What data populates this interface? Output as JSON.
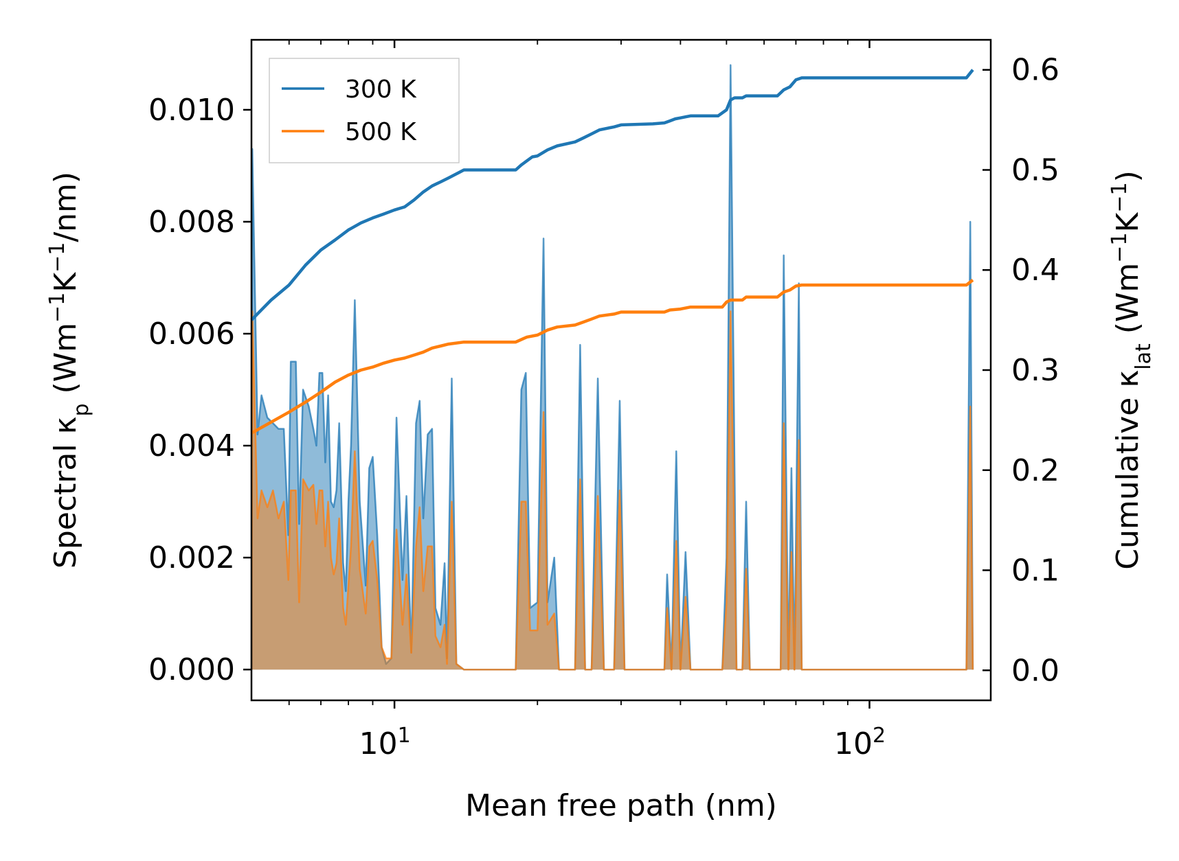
{
  "chart_data": {
    "type": "line",
    "xscale": "log",
    "xlim": [
      5.0,
      180.0
    ],
    "y_left": {
      "lim": [
        -0.00055,
        0.01125
      ],
      "ticks": [
        0.0,
        0.002,
        0.004,
        0.006,
        0.008,
        0.01
      ],
      "tick_labels": [
        "0.000",
        "0.002",
        "0.004",
        "0.006",
        "0.008",
        "0.010"
      ]
    },
    "y_right": {
      "lim": [
        -0.03,
        0.63
      ],
      "ticks": [
        0.0,
        0.1,
        0.2,
        0.3,
        0.4,
        0.5,
        0.6
      ],
      "tick_labels": [
        "0.0",
        "0.1",
        "0.2",
        "0.3",
        "0.4",
        "0.5",
        "0.6"
      ]
    },
    "x_ticks": [
      {
        "value": 10,
        "base": "10",
        "exp": "1"
      },
      {
        "value": 100,
        "base": "10",
        "exp": "2"
      }
    ],
    "xlabel": "Mean free path (nm)",
    "ylabel_left": {
      "pre": "Spectral κ",
      "sub": "p",
      "mid": " (Wm",
      "sup1": "−1",
      "k": "K",
      "sup2": "−1",
      "post": "/nm)"
    },
    "ylabel_right": {
      "pre": "Cumulative κ",
      "sub": "lat",
      "mid": " (Wm",
      "sup1": "−1",
      "k": "K",
      "sup2": "−1",
      "post": ")"
    },
    "legend": {
      "position": "top-left",
      "entries": [
        {
          "label": "300 K",
          "color": "#1f77b4"
        },
        {
          "label": "500 K",
          "color": "#ff7f0e"
        }
      ]
    },
    "series": [
      {
        "name": "300 K",
        "color": "#1f77b4",
        "spectral": [
          [
            5.0,
            0.0
          ],
          [
            5.02,
            0.0093
          ],
          [
            5.15,
            0.0042
          ],
          [
            5.25,
            0.0049
          ],
          [
            5.4,
            0.0045
          ],
          [
            5.55,
            0.0044
          ],
          [
            5.7,
            0.0043
          ],
          [
            5.85,
            0.0043
          ],
          [
            5.98,
            0.0024
          ],
          [
            6.05,
            0.0055
          ],
          [
            6.2,
            0.0055
          ],
          [
            6.3,
            0.0026
          ],
          [
            6.42,
            0.005
          ],
          [
            6.6,
            0.0047
          ],
          [
            6.75,
            0.0043
          ],
          [
            6.85,
            0.004
          ],
          [
            6.95,
            0.0053
          ],
          [
            7.05,
            0.0053
          ],
          [
            7.15,
            0.0037
          ],
          [
            7.25,
            0.0049
          ],
          [
            7.35,
            0.003
          ],
          [
            7.45,
            0.0029
          ],
          [
            7.55,
            0.0032
          ],
          [
            7.65,
            0.0044
          ],
          [
            7.8,
            0.0019
          ],
          [
            7.9,
            0.0014
          ],
          [
            8.0,
            0.003
          ],
          [
            8.1,
            0.004
          ],
          [
            8.25,
            0.0066
          ],
          [
            8.45,
            0.003
          ],
          [
            8.7,
            0.0015
          ],
          [
            8.85,
            0.0036
          ],
          [
            9.0,
            0.0038
          ],
          [
            9.2,
            0.0024
          ],
          [
            9.4,
            0.0004
          ],
          [
            9.6,
            0.0001
          ],
          [
            9.85,
            0.0002
          ],
          [
            10.1,
            0.0045
          ],
          [
            10.4,
            0.0016
          ],
          [
            10.6,
            0.0031
          ],
          [
            10.85,
            0.0003
          ],
          [
            11.1,
            0.0044
          ],
          [
            11.3,
            0.0048
          ],
          [
            11.5,
            0.0027
          ],
          [
            11.75,
            0.0042
          ],
          [
            12.0,
            0.0043
          ],
          [
            12.2,
            0.0011
          ],
          [
            12.5,
            0.0008
          ],
          [
            12.75,
            0.0019
          ],
          [
            12.9,
            0.0002
          ],
          [
            13.2,
            0.0052
          ],
          [
            13.5,
            0.0001
          ],
          [
            14.0,
            0.0
          ],
          [
            18.0,
            0.0
          ],
          [
            18.5,
            0.005
          ],
          [
            18.9,
            0.0053
          ],
          [
            19.3,
            0.0011
          ],
          [
            20.0,
            0.0012
          ],
          [
            20.6,
            0.0077
          ],
          [
            21.0,
            0.0012
          ],
          [
            21.7,
            0.002
          ],
          [
            22.2,
            0.0
          ],
          [
            24.0,
            0.0
          ],
          [
            24.6,
            0.0058
          ],
          [
            25.2,
            0.0
          ],
          [
            26.0,
            0.0
          ],
          [
            26.8,
            0.0052
          ],
          [
            27.6,
            0.0
          ],
          [
            29.0,
            0.0
          ],
          [
            29.8,
            0.0048
          ],
          [
            30.5,
            0.0
          ],
          [
            37.0,
            0.0
          ],
          [
            37.5,
            0.0017
          ],
          [
            38.3,
            0.0
          ],
          [
            39.2,
            0.0039
          ],
          [
            40.0,
            0.0
          ],
          [
            41.0,
            0.0021
          ],
          [
            42.0,
            0.0
          ],
          [
            49.0,
            0.0
          ],
          [
            50.0,
            0.002
          ],
          [
            51.0,
            0.0108
          ],
          [
            52.5,
            0.0
          ],
          [
            54.0,
            0.0
          ],
          [
            55.0,
            0.003
          ],
          [
            56.0,
            0.0
          ],
          [
            65.0,
            0.0
          ],
          [
            66.0,
            0.0074
          ],
          [
            67.5,
            0.0
          ],
          [
            68.5,
            0.0036
          ],
          [
            69.5,
            0.0
          ],
          [
            71.0,
            0.0069
          ],
          [
            72.0,
            0.0
          ],
          [
            160.0,
            0.0
          ],
          [
            163.0,
            0.008
          ],
          [
            165.0,
            0.0
          ]
        ],
        "cumulative": [
          [
            5.0,
            0.35
          ],
          [
            5.5,
            0.37
          ],
          [
            6.0,
            0.385
          ],
          [
            6.5,
            0.405
          ],
          [
            7.0,
            0.42
          ],
          [
            7.5,
            0.43
          ],
          [
            8.0,
            0.44
          ],
          [
            8.5,
            0.447
          ],
          [
            9.0,
            0.452
          ],
          [
            9.5,
            0.456
          ],
          [
            10.0,
            0.46
          ],
          [
            10.5,
            0.463
          ],
          [
            11.0,
            0.47
          ],
          [
            11.5,
            0.478
          ],
          [
            12.0,
            0.484
          ],
          [
            12.5,
            0.488
          ],
          [
            13.0,
            0.492
          ],
          [
            13.5,
            0.496
          ],
          [
            14.0,
            0.5
          ],
          [
            18.0,
            0.5
          ],
          [
            18.5,
            0.505
          ],
          [
            19.5,
            0.513
          ],
          [
            20.0,
            0.514
          ],
          [
            21.0,
            0.52
          ],
          [
            22.0,
            0.524
          ],
          [
            24.0,
            0.528
          ],
          [
            25.0,
            0.532
          ],
          [
            26.0,
            0.536
          ],
          [
            27.0,
            0.54
          ],
          [
            29.0,
            0.543
          ],
          [
            30.0,
            0.545
          ],
          [
            35.0,
            0.546
          ],
          [
            37.0,
            0.547
          ],
          [
            38.0,
            0.549
          ],
          [
            39.0,
            0.551
          ],
          [
            40.0,
            0.552
          ],
          [
            41.0,
            0.553
          ],
          [
            42.0,
            0.554
          ],
          [
            48.0,
            0.554
          ],
          [
            50.0,
            0.56
          ],
          [
            51.0,
            0.57
          ],
          [
            52.0,
            0.572
          ],
          [
            54.0,
            0.572
          ],
          [
            55.0,
            0.574
          ],
          [
            64.0,
            0.574
          ],
          [
            66.0,
            0.58
          ],
          [
            68.0,
            0.583
          ],
          [
            70.0,
            0.59
          ],
          [
            72.0,
            0.592
          ],
          [
            160.0,
            0.592
          ],
          [
            165.0,
            0.6
          ]
        ]
      },
      {
        "name": "500 K",
        "color": "#ff7f0e",
        "spectral": [
          [
            5.0,
            0.0
          ],
          [
            5.02,
            0.0064
          ],
          [
            5.15,
            0.0027
          ],
          [
            5.25,
            0.0032
          ],
          [
            5.4,
            0.0029
          ],
          [
            5.55,
            0.0032
          ],
          [
            5.7,
            0.0027
          ],
          [
            5.85,
            0.003
          ],
          [
            5.98,
            0.0016
          ],
          [
            6.05,
            0.0032
          ],
          [
            6.2,
            0.0032
          ],
          [
            6.3,
            0.0012
          ],
          [
            6.42,
            0.0034
          ],
          [
            6.6,
            0.0032
          ],
          [
            6.75,
            0.0033
          ],
          [
            6.85,
            0.0026
          ],
          [
            6.95,
            0.0032
          ],
          [
            7.05,
            0.0032
          ],
          [
            7.15,
            0.0022
          ],
          [
            7.25,
            0.003
          ],
          [
            7.35,
            0.002
          ],
          [
            7.45,
            0.0017
          ],
          [
            7.55,
            0.0019
          ],
          [
            7.65,
            0.0027
          ],
          [
            7.8,
            0.0011
          ],
          [
            7.9,
            0.0008
          ],
          [
            8.0,
            0.0015
          ],
          [
            8.1,
            0.0022
          ],
          [
            8.25,
            0.0039
          ],
          [
            8.45,
            0.0018
          ],
          [
            8.7,
            0.001
          ],
          [
            8.85,
            0.0022
          ],
          [
            9.0,
            0.0023
          ],
          [
            9.2,
            0.0016
          ],
          [
            9.4,
            0.0004
          ],
          [
            9.6,
            0.0002
          ],
          [
            9.85,
            0.0002
          ],
          [
            10.1,
            0.0025
          ],
          [
            10.4,
            0.0008
          ],
          [
            10.6,
            0.0017
          ],
          [
            10.85,
            0.0003
          ],
          [
            11.1,
            0.0022
          ],
          [
            11.3,
            0.0029
          ],
          [
            11.5,
            0.0014
          ],
          [
            11.75,
            0.0022
          ],
          [
            12.0,
            0.0022
          ],
          [
            12.2,
            0.0006
          ],
          [
            12.5,
            0.0004
          ],
          [
            12.75,
            0.0008
          ],
          [
            12.9,
            0.0001
          ],
          [
            13.2,
            0.003
          ],
          [
            13.5,
            0.0001
          ],
          [
            14.0,
            0.0
          ],
          [
            18.0,
            0.0
          ],
          [
            18.5,
            0.003
          ],
          [
            18.9,
            0.003
          ],
          [
            19.3,
            0.0007
          ],
          [
            20.0,
            0.0007
          ],
          [
            20.6,
            0.0046
          ],
          [
            21.0,
            0.0008
          ],
          [
            21.7,
            0.001
          ],
          [
            22.2,
            0.0
          ],
          [
            24.0,
            0.0
          ],
          [
            24.6,
            0.0034
          ],
          [
            25.2,
            0.0
          ],
          [
            26.0,
            0.0
          ],
          [
            26.8,
            0.0031
          ],
          [
            27.6,
            0.0
          ],
          [
            29.0,
            0.0
          ],
          [
            29.8,
            0.0032
          ],
          [
            30.5,
            0.0
          ],
          [
            37.0,
            0.0
          ],
          [
            37.5,
            0.0011
          ],
          [
            38.3,
            0.0
          ],
          [
            39.2,
            0.0023
          ],
          [
            40.0,
            0.0
          ],
          [
            41.0,
            0.0013
          ],
          [
            42.0,
            0.0
          ],
          [
            49.0,
            0.0
          ],
          [
            50.0,
            0.0012
          ],
          [
            51.0,
            0.0064
          ],
          [
            52.5,
            0.0
          ],
          [
            54.0,
            0.0
          ],
          [
            55.0,
            0.0018
          ],
          [
            56.0,
            0.0
          ],
          [
            65.0,
            0.0
          ],
          [
            66.0,
            0.0044
          ],
          [
            67.5,
            0.0
          ],
          [
            68.5,
            0.0021
          ],
          [
            69.5,
            0.0
          ],
          [
            71.0,
            0.0041
          ],
          [
            72.0,
            0.0
          ],
          [
            160.0,
            0.0
          ],
          [
            163.0,
            0.0047
          ],
          [
            165.0,
            0.0
          ]
        ],
        "cumulative": [
          [
            5.0,
            0.237
          ],
          [
            5.5,
            0.248
          ],
          [
            6.0,
            0.258
          ],
          [
            6.5,
            0.268
          ],
          [
            7.0,
            0.278
          ],
          [
            7.5,
            0.288
          ],
          [
            8.0,
            0.295
          ],
          [
            8.5,
            0.3
          ],
          [
            9.0,
            0.303
          ],
          [
            9.5,
            0.307
          ],
          [
            10.0,
            0.31
          ],
          [
            10.5,
            0.312
          ],
          [
            11.0,
            0.315
          ],
          [
            11.5,
            0.318
          ],
          [
            12.0,
            0.322
          ],
          [
            12.5,
            0.324
          ],
          [
            13.0,
            0.326
          ],
          [
            14.0,
            0.328
          ],
          [
            18.0,
            0.328
          ],
          [
            19.0,
            0.333
          ],
          [
            20.0,
            0.335
          ],
          [
            21.0,
            0.34
          ],
          [
            22.0,
            0.343
          ],
          [
            24.0,
            0.345
          ],
          [
            25.0,
            0.348
          ],
          [
            26.0,
            0.351
          ],
          [
            27.0,
            0.354
          ],
          [
            29.0,
            0.356
          ],
          [
            30.0,
            0.358
          ],
          [
            37.0,
            0.358
          ],
          [
            38.0,
            0.36
          ],
          [
            40.0,
            0.361
          ],
          [
            42.0,
            0.363
          ],
          [
            49.0,
            0.363
          ],
          [
            50.0,
            0.368
          ],
          [
            51.0,
            0.37
          ],
          [
            54.0,
            0.37
          ],
          [
            55.0,
            0.373
          ],
          [
            64.0,
            0.373
          ],
          [
            66.0,
            0.378
          ],
          [
            68.0,
            0.38
          ],
          [
            70.0,
            0.384
          ],
          [
            72.0,
            0.385
          ],
          [
            160.0,
            0.385
          ],
          [
            165.0,
            0.39
          ]
        ]
      }
    ]
  }
}
